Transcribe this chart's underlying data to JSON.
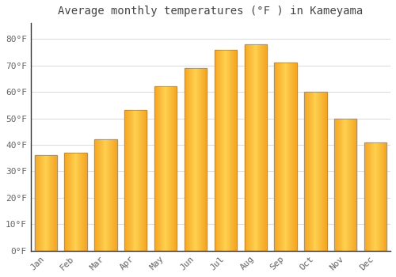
{
  "title": "Average monthly temperatures (°F ) in Kameyama",
  "months": [
    "Jan",
    "Feb",
    "Mar",
    "Apr",
    "May",
    "Jun",
    "Jul",
    "Aug",
    "Sep",
    "Oct",
    "Nov",
    "Dec"
  ],
  "values": [
    36,
    37,
    42,
    53,
    62,
    69,
    76,
    78,
    71,
    60,
    50,
    41
  ],
  "bar_color_outer": "#F5A623",
  "bar_color_inner": "#FFD050",
  "bar_edge_color": "#888888",
  "background_color": "#FFFFFF",
  "plot_bg_color": "#FFFFFF",
  "grid_color": "#DDDDDD",
  "ylabel_ticks": [
    "0°F",
    "10°F",
    "20°F",
    "30°F",
    "40°F",
    "50°F",
    "60°F",
    "70°F",
    "80°F"
  ],
  "ytick_values": [
    0,
    10,
    20,
    30,
    40,
    50,
    60,
    70,
    80
  ],
  "ylim": [
    0,
    86
  ],
  "title_fontsize": 10,
  "tick_fontsize": 8,
  "font_color": "#666666",
  "title_color": "#444444"
}
